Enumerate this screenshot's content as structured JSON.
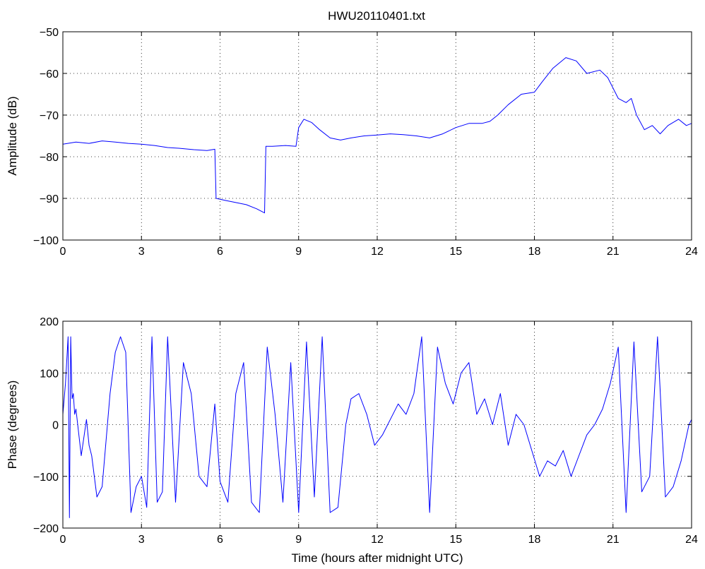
{
  "figure_title": "HWU20110401.txt",
  "chart_data": [
    {
      "type": "line",
      "title": "HWU20110401.txt",
      "xlabel": "",
      "ylabel": "Amplitude (dB)",
      "xlim": [
        0,
        24
      ],
      "ylim": [
        -100,
        -50
      ],
      "xticks": [
        0,
        3,
        6,
        9,
        12,
        15,
        18,
        21,
        24
      ],
      "yticks": [
        -100,
        -90,
        -80,
        -70,
        -60,
        -50
      ],
      "xtick_labels": [
        "0",
        "3",
        "6",
        "9",
        "12",
        "15",
        "18",
        "21",
        "24"
      ],
      "ytick_labels": [
        "−100",
        "−90",
        "−80",
        "−70",
        "−60",
        "−50"
      ],
      "grid": true,
      "color": "#0000ff",
      "series": [
        {
          "x": [
            0,
            0.5,
            1,
            1.5,
            2,
            2.5,
            3,
            3.5,
            4,
            4.5,
            5,
            5.5,
            5.8,
            5.85,
            6.2,
            6.6,
            7,
            7.4,
            7.7,
            7.75,
            8,
            8.5,
            8.9,
            9.0,
            9.2,
            9.5,
            9.8,
            10.2,
            10.6,
            11,
            11.5,
            12,
            12.5,
            13,
            13.5,
            14,
            14.5,
            15,
            15.5,
            16,
            16.3,
            16.6,
            17,
            17.5,
            18,
            18.3,
            18.7,
            19.2,
            19.6,
            20,
            20.5,
            20.8,
            21.2,
            21.5,
            21.7,
            21.9,
            22.2,
            22.5,
            22.8,
            23.1,
            23.5,
            23.8,
            24
          ],
          "y": [
            -77,
            -76.5,
            -76.8,
            -76.2,
            -76.5,
            -76.8,
            -77,
            -77.3,
            -77.8,
            -78,
            -78.3,
            -78.5,
            -78.2,
            -90,
            -90.5,
            -91,
            -91.5,
            -92.5,
            -93.5,
            -77.5,
            -77.5,
            -77.3,
            -77.5,
            -73,
            -71,
            -71.8,
            -73.5,
            -75.5,
            -76,
            -75.5,
            -75,
            -74.8,
            -74.5,
            -74.7,
            -75,
            -75.5,
            -74.5,
            -73,
            -72,
            -72,
            -71.5,
            -70,
            -67.5,
            -65,
            -64.5,
            -62,
            -58.8,
            -56.2,
            -57,
            -60,
            -59.2,
            -61,
            -66,
            -67,
            -66,
            -70,
            -73.5,
            -72.5,
            -74.5,
            -72.5,
            -71,
            -72.5,
            -72
          ]
        }
      ]
    },
    {
      "type": "line",
      "title": "",
      "xlabel": "Time (hours after midnight UTC)",
      "ylabel": "Phase (degrees)",
      "xlim": [
        0,
        24
      ],
      "ylim": [
        -200,
        200
      ],
      "xticks": [
        0,
        3,
        6,
        9,
        12,
        15,
        18,
        21,
        24
      ],
      "yticks": [
        -200,
        -100,
        0,
        100,
        200
      ],
      "xtick_labels": [
        "0",
        "3",
        "6",
        "9",
        "12",
        "15",
        "18",
        "21",
        "24"
      ],
      "ytick_labels": [
        "−200",
        "−100",
        "0",
        "100",
        "200"
      ],
      "grid": true,
      "color": "#0000ff",
      "series": [
        {
          "x": [
            0,
            0.1,
            0.2,
            0.25,
            0.3,
            0.35,
            0.4,
            0.45,
            0.5,
            0.7,
            0.9,
            1.0,
            1.1,
            1.3,
            1.5,
            1.8,
            2.0,
            2.2,
            2.4,
            2.6,
            2.8,
            3.0,
            3.2,
            3.4,
            3.6,
            3.8,
            4.0,
            4.3,
            4.6,
            4.9,
            5.2,
            5.5,
            5.8,
            6.0,
            6.3,
            6.6,
            6.9,
            7.2,
            7.5,
            7.8,
            8.1,
            8.4,
            8.7,
            9.0,
            9.3,
            9.6,
            9.9,
            10.2,
            10.5,
            10.8,
            11.0,
            11.3,
            11.6,
            11.9,
            12.2,
            12.5,
            12.8,
            13.1,
            13.4,
            13.7,
            14.0,
            14.3,
            14.6,
            14.9,
            15.2,
            15.5,
            15.8,
            16.1,
            16.4,
            16.7,
            17.0,
            17.3,
            17.6,
            17.9,
            18.2,
            18.5,
            18.8,
            19.1,
            19.4,
            19.7,
            20.0,
            20.3,
            20.6,
            20.9,
            21.2,
            21.5,
            21.8,
            22.1,
            22.4,
            22.7,
            23.0,
            23.3,
            23.6,
            23.9,
            24.0
          ],
          "y": [
            20,
            80,
            170,
            -180,
            170,
            50,
            60,
            20,
            30,
            -60,
            10,
            -40,
            -60,
            -140,
            -120,
            60,
            140,
            170,
            140,
            -170,
            -120,
            -100,
            -160,
            170,
            -150,
            -130,
            170,
            -150,
            120,
            60,
            -100,
            -120,
            40,
            -110,
            -150,
            60,
            120,
            -150,
            -170,
            150,
            20,
            -150,
            120,
            -170,
            160,
            -140,
            170,
            -170,
            -160,
            0,
            50,
            60,
            20,
            -40,
            -20,
            10,
            40,
            20,
            60,
            170,
            -170,
            150,
            80,
            40,
            100,
            120,
            20,
            50,
            0,
            60,
            -40,
            20,
            0,
            -50,
            -100,
            -70,
            -80,
            -50,
            -100,
            -60,
            -20,
            0,
            30,
            80,
            150,
            -170,
            160,
            -130,
            -100,
            170,
            -140,
            -120,
            -70,
            0,
            10
          ]
        }
      ]
    }
  ]
}
